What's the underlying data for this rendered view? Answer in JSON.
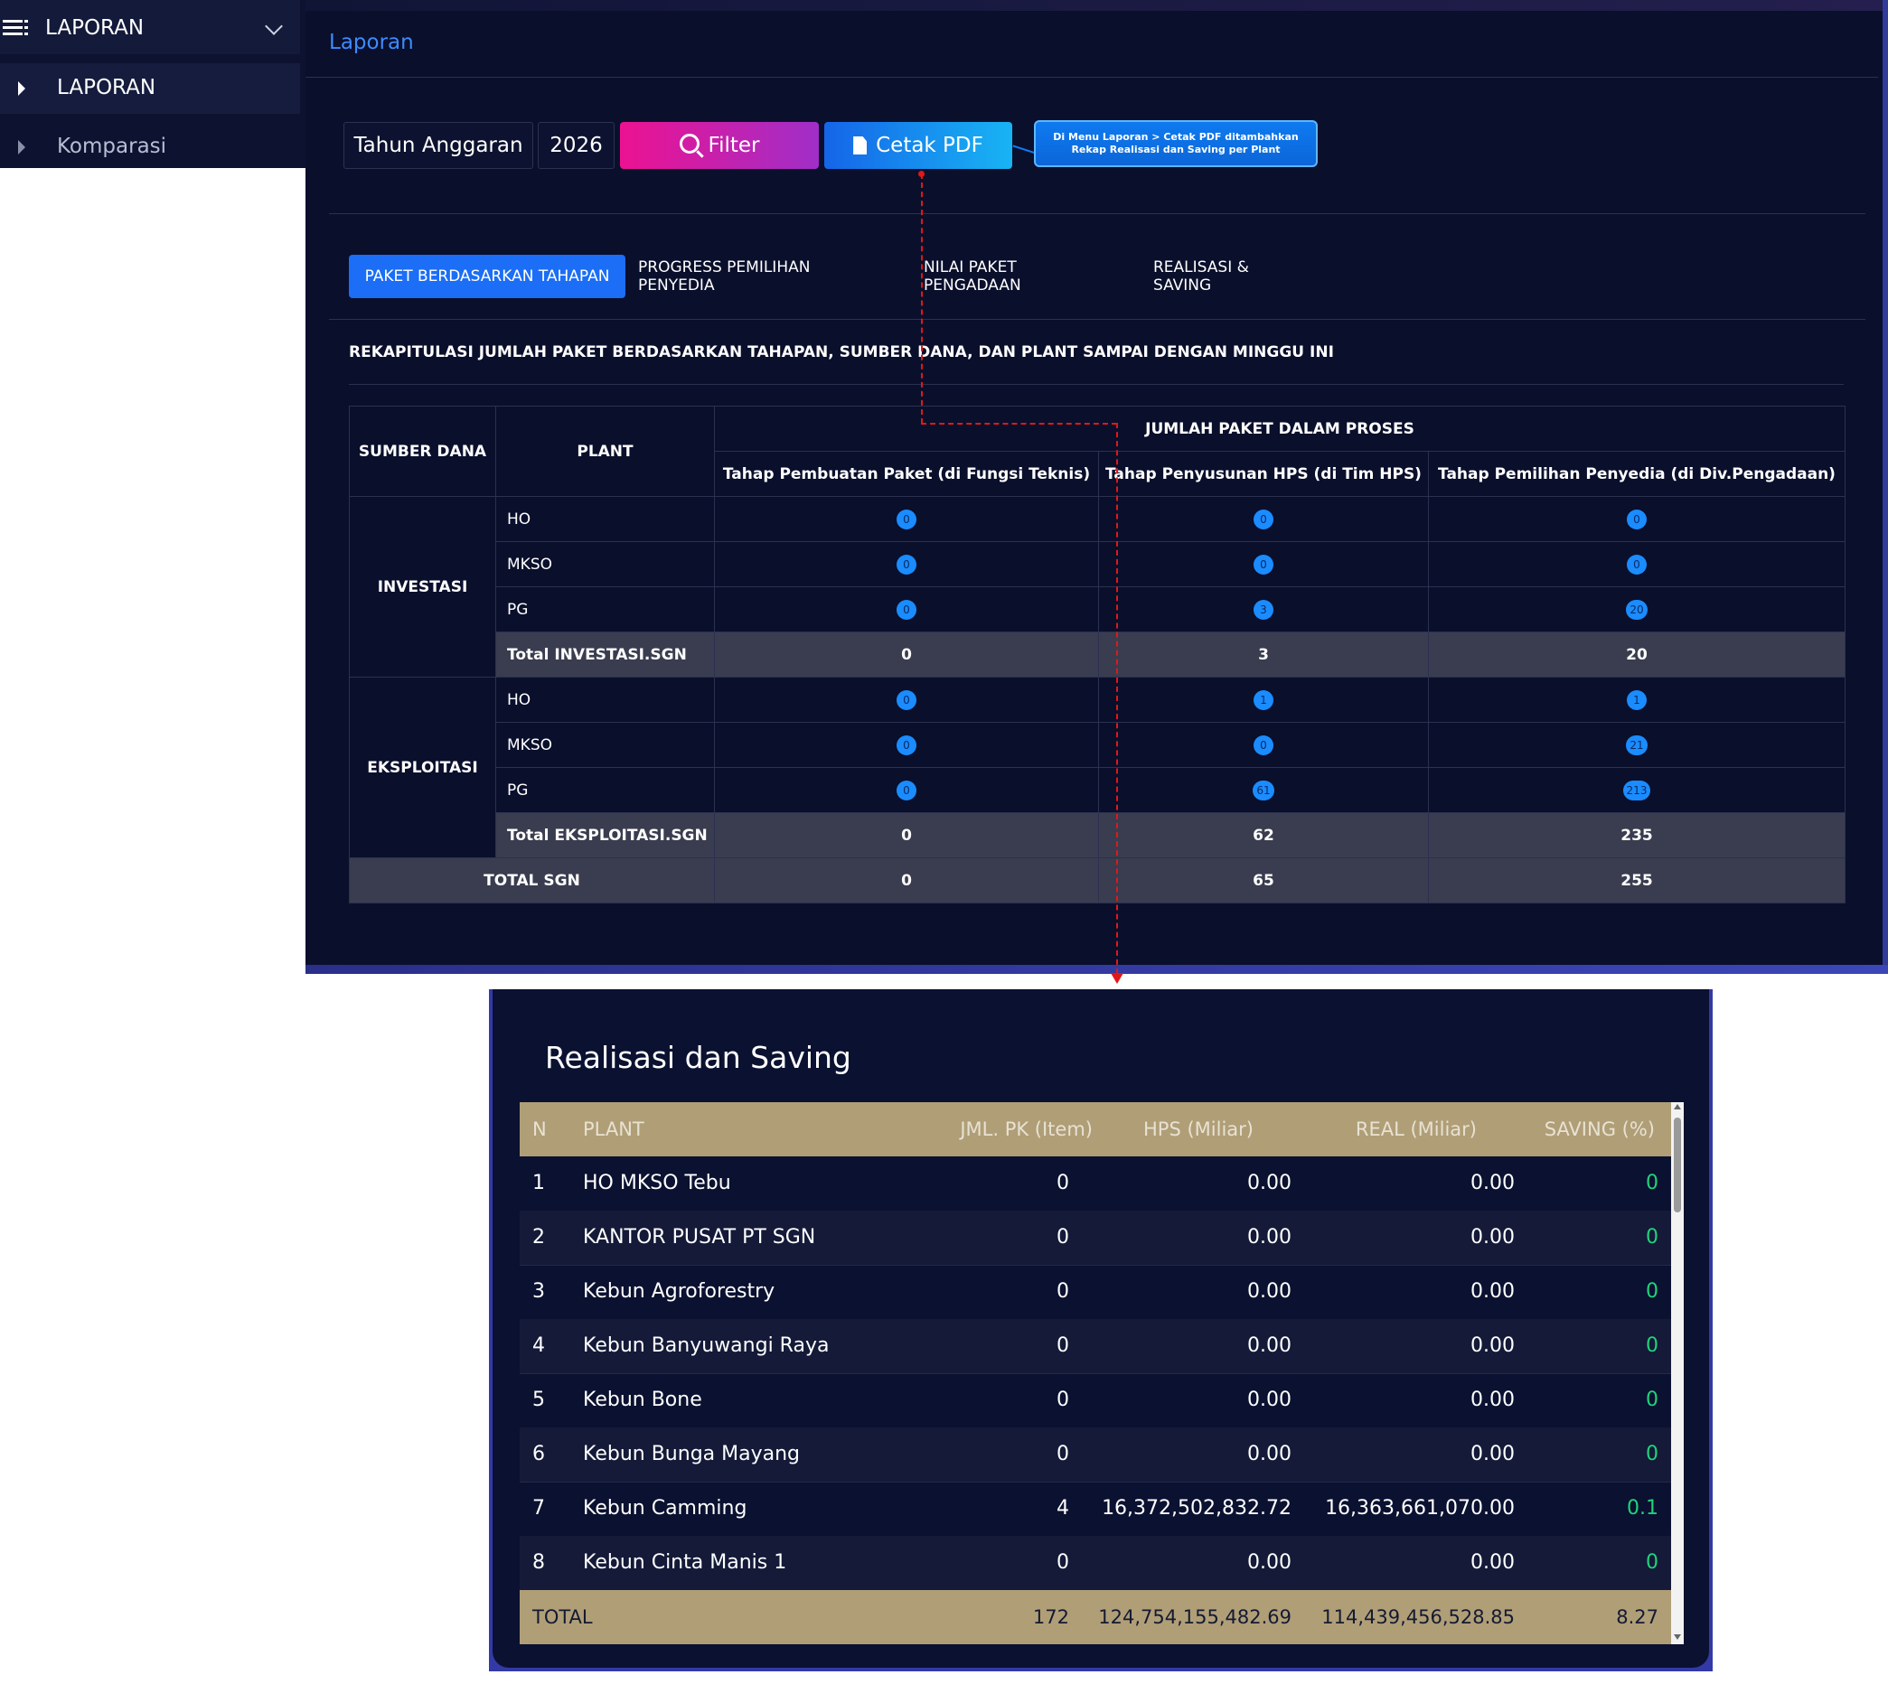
{
  "sidebar": {
    "header": "LAPORAN",
    "items": [
      {
        "label": "LAPORAN"
      },
      {
        "label": "Komparasi"
      }
    ]
  },
  "breadcrumb": "Laporan",
  "filter": {
    "label": "Tahun Anggaran",
    "year": "2026",
    "filter_button": "Filter",
    "pdf_button": "Cetak PDF",
    "callout": "Di Menu Laporan > Cetak PDF ditambahkan Rekap Realisasi dan Saving per Plant"
  },
  "tabs": [
    {
      "label": "PAKET BERDASARKAN TAHAPAN"
    },
    {
      "label": "PROGRESS PEMILIHAN PENYEDIA"
    },
    {
      "label": "NILAI PAKET PENGADAAN"
    },
    {
      "label": "REALISASI & SAVING"
    }
  ],
  "rekap": {
    "title": "REKAPITULASI JUMLAH PAKET BERDASARKAN TAHAPAN, SUMBER DANA, DAN PLANT SAMPAI DENGAN MINGGU INI",
    "headers": {
      "sumber_dana": "SUMBER DANA",
      "plant": "PLANT",
      "group": "JUMLAH PAKET DALAM PROSES",
      "col1": "Tahap Pembuatan Paket (di Fungsi Teknis)",
      "col2": "Tahap Penyusunan HPS (di Tim HPS)",
      "col3": "Tahap Pemilihan Penyedia (di Div.Pengadaan)"
    },
    "investasi": {
      "label": "INVESTASI",
      "rows": [
        {
          "plant": "HO",
          "v1": "0",
          "v2": "0",
          "v3": "0"
        },
        {
          "plant": "MKSO",
          "v1": "0",
          "v2": "0",
          "v3": "0"
        },
        {
          "plant": "PG",
          "v1": "0",
          "v2": "3",
          "v3": "20"
        }
      ],
      "total": {
        "label": "Total INVESTASI.SGN",
        "v1": "0",
        "v2": "3",
        "v3": "20"
      }
    },
    "eksploitasi": {
      "label": "EKSPLOITASI",
      "rows": [
        {
          "plant": "HO",
          "v1": "0",
          "v2": "1",
          "v3": "1"
        },
        {
          "plant": "MKSO",
          "v1": "0",
          "v2": "0",
          "v3": "21"
        },
        {
          "plant": "PG",
          "v1": "0",
          "v2": "61",
          "v3": "213"
        }
      ],
      "total": {
        "label": "Total EKSPLOITASI.SGN",
        "v1": "0",
        "v2": "62",
        "v3": "235"
      }
    },
    "grand_total": {
      "label": "TOTAL SGN",
      "v1": "0",
      "v2": "65",
      "v3": "255"
    }
  },
  "realisasi": {
    "title": "Realisasi dan Saving",
    "headers": {
      "n": "N",
      "plant": "PLANT",
      "jml": "JML. PK (Item)",
      "hps": "HPS (Miliar)",
      "real": "REAL (Miliar)",
      "saving": "SAVING (%)"
    },
    "rows": [
      {
        "n": "1",
        "plant": "HO MKSO Tebu",
        "jml": "0",
        "hps": "0.00",
        "real": "0.00",
        "saving": "0"
      },
      {
        "n": "2",
        "plant": "KANTOR PUSAT PT SGN",
        "jml": "0",
        "hps": "0.00",
        "real": "0.00",
        "saving": "0"
      },
      {
        "n": "3",
        "plant": "Kebun Agroforestry",
        "jml": "0",
        "hps": "0.00",
        "real": "0.00",
        "saving": "0"
      },
      {
        "n": "4",
        "plant": "Kebun Banyuwangi Raya",
        "jml": "0",
        "hps": "0.00",
        "real": "0.00",
        "saving": "0"
      },
      {
        "n": "5",
        "plant": "Kebun Bone",
        "jml": "0",
        "hps": "0.00",
        "real": "0.00",
        "saving": "0"
      },
      {
        "n": "6",
        "plant": "Kebun Bunga Mayang",
        "jml": "0",
        "hps": "0.00",
        "real": "0.00",
        "saving": "0"
      },
      {
        "n": "7",
        "plant": "Kebun Camming",
        "jml": "4",
        "hps": "16,372,502,832.72",
        "real": "16,363,661,070.00",
        "saving": "0.1"
      },
      {
        "n": "8",
        "plant": "Kebun Cinta Manis 1",
        "jml": "0",
        "hps": "0.00",
        "real": "0.00",
        "saving": "0"
      }
    ],
    "total": {
      "label": "TOTAL",
      "jml": "172",
      "hps": "124,754,155,482.69",
      "real": "114,439,456,528.85",
      "saving": "8.27"
    }
  },
  "colors": {
    "accent": "#1b6ef5",
    "filter": "#ec1291",
    "pdf": "#18b4f4",
    "saving": "#1fd37a",
    "header_gold": "#b09e77",
    "connector": "#e01818"
  }
}
